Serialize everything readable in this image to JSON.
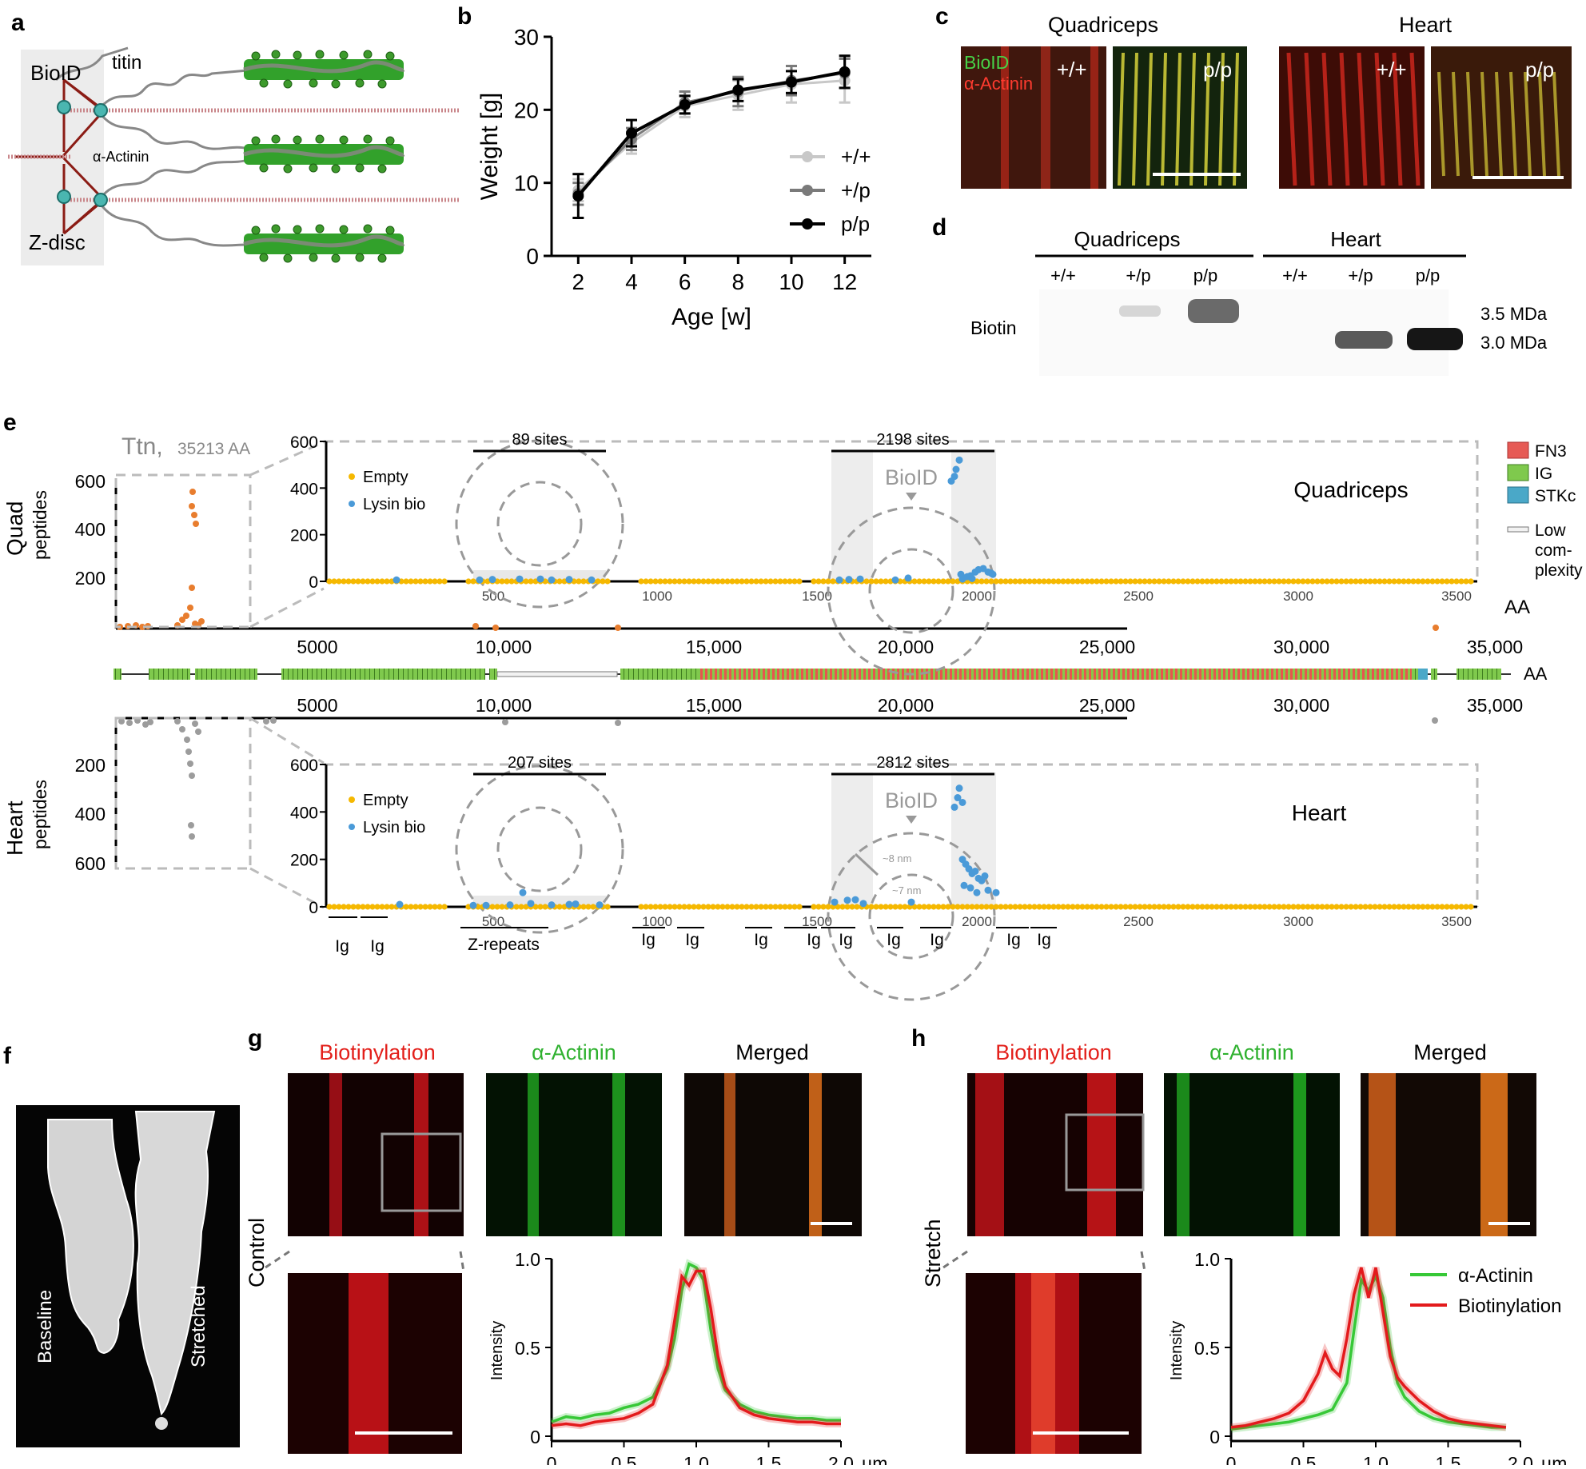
{
  "panel_letters": {
    "a": "a",
    "b": "b",
    "c": "c",
    "d": "d",
    "e": "e",
    "f": "f",
    "g": "g",
    "h": "h"
  },
  "panel_a": {
    "bioid": "BioID",
    "titin": "titin",
    "actinin": "α-Actinin",
    "zdisc": "Z-disc"
  },
  "panel_b": {
    "chart_data": {
      "type": "line",
      "xlabel": "Age [w]",
      "ylabel": "Weight [g]",
      "x": [
        2,
        4,
        6,
        8,
        10,
        12
      ],
      "xlim": [
        1,
        13
      ],
      "ylim": [
        0,
        30
      ],
      "yticks": [
        0,
        10,
        20,
        30
      ],
      "legend_position": "bottom-right",
      "series": [
        {
          "name": "+/+",
          "color": "#c8c8c8",
          "values": [
            9.0,
            15.5,
            20.5,
            22.0,
            23.5,
            24.0
          ],
          "err": [
            1.5,
            1.5,
            1.5,
            2.0,
            2.5,
            3.0
          ]
        },
        {
          "name": "+/p",
          "color": "#7a7a7a",
          "values": [
            8.5,
            16.0,
            21.0,
            22.5,
            24.0,
            25.0
          ],
          "err": [
            1.5,
            1.5,
            1.5,
            2.0,
            2.0,
            2.0
          ]
        },
        {
          "name": "p/p",
          "color": "#000000",
          "values": [
            8.2,
            16.8,
            20.7,
            22.7,
            23.8,
            25.2
          ],
          "err": [
            3.0,
            1.8,
            1.2,
            1.5,
            1.5,
            2.2
          ]
        }
      ]
    }
  },
  "panel_c": {
    "title_quad": "Quadriceps",
    "title_heart": "Heart",
    "bioid": "BioID",
    "actinin": "α-Actinin",
    "wt": "+/+",
    "pp": "p/p"
  },
  "panel_d": {
    "quad": "Quadriceps",
    "heart": "Heart",
    "lanes": [
      "+/+",
      "+/p",
      "p/p",
      "+/+",
      "+/p",
      "p/p"
    ],
    "row_label": "Biotin",
    "mw_top": "3.5 MDa",
    "mw_bottom": "3.0 MDa"
  },
  "panel_e": {
    "ttn": "Ttn,",
    "ttn_len": "35213 AA",
    "quad_label": "Quad",
    "heart_label": "Heart",
    "peptides": "peptides",
    "quad_title": "Quadriceps",
    "heart_title": "Heart",
    "legend_empty": "Empty",
    "legend_lysin": "Lysin bio",
    "bioid": "BioID",
    "quad_sites_left": "89 sites",
    "quad_sites_right": "2198 sites",
    "heart_sites_left": "207 sites",
    "heart_sites_right": "2812 sites",
    "aa": "AA",
    "full_ticks": [
      "5000",
      "10,000",
      "15,000",
      "20,000",
      "25,000",
      "30,000",
      "35,000"
    ],
    "zoom_ticks": [
      "500",
      "1000",
      "1500",
      "2000",
      "2500",
      "3000",
      "3500"
    ],
    "y_ticks": [
      "0",
      "200",
      "400",
      "600"
    ],
    "left_quad_ticks": [
      "600",
      "400",
      "200"
    ],
    "left_heart_ticks": [
      "200",
      "400",
      "600"
    ],
    "domain_legend": [
      {
        "label": "FN3",
        "color": "#e65a55"
      },
      {
        "label": "IG",
        "color": "#7fc94d"
      },
      {
        "label": "STKc",
        "color": "#4aa8c8"
      }
    ],
    "low": "Low",
    "com": "com-",
    "plexity": "plexity",
    "nm8": "~8 nm",
    "nm7": "~7 nm",
    "ig": "Ig",
    "zrep": "Z-repeats"
  },
  "panel_f": {
    "baseline": "Baseline",
    "stretched": "Stretched"
  },
  "panel_g": {
    "row_label": "Control",
    "col_bio": "Biotinylation",
    "col_act": "α-Actinin",
    "col_merged": "Merged",
    "chart_data": {
      "type": "line",
      "xlabel": "",
      "ylabel": "Intensity",
      "x_unit": "µm",
      "xlim": [
        0,
        2.0
      ],
      "ylim": [
        0,
        1.0
      ],
      "xticks": [
        "0",
        "0.5",
        "1.0",
        "1.5",
        "2.0"
      ],
      "yticks": [
        "0",
        "0.5",
        "1.0"
      ],
      "series": [
        {
          "name": "α-Actinin",
          "color": "#37c837",
          "x": [
            0,
            0.1,
            0.2,
            0.3,
            0.4,
            0.5,
            0.6,
            0.7,
            0.8,
            0.85,
            0.9,
            0.95,
            1.0,
            1.05,
            1.1,
            1.15,
            1.2,
            1.3,
            1.4,
            1.5,
            1.6,
            1.7,
            1.8,
            1.9,
            2.0
          ],
          "values": [
            0.08,
            0.11,
            0.1,
            0.12,
            0.13,
            0.16,
            0.18,
            0.22,
            0.38,
            0.55,
            0.82,
            0.97,
            0.95,
            0.88,
            0.6,
            0.38,
            0.26,
            0.18,
            0.14,
            0.12,
            0.11,
            0.1,
            0.1,
            0.09,
            0.09
          ]
        },
        {
          "name": "Biotinylation",
          "color": "#e31a1c",
          "x": [
            0,
            0.1,
            0.2,
            0.3,
            0.4,
            0.5,
            0.6,
            0.7,
            0.8,
            0.85,
            0.9,
            0.95,
            1.0,
            1.05,
            1.1,
            1.15,
            1.2,
            1.3,
            1.4,
            1.5,
            1.6,
            1.7,
            1.8,
            1.9,
            2.0
          ],
          "values": [
            0.06,
            0.07,
            0.06,
            0.08,
            0.09,
            0.1,
            0.13,
            0.18,
            0.4,
            0.65,
            0.9,
            0.85,
            0.93,
            0.93,
            0.72,
            0.45,
            0.28,
            0.16,
            0.12,
            0.1,
            0.09,
            0.08,
            0.08,
            0.07,
            0.07
          ]
        }
      ]
    }
  },
  "panel_h": {
    "row_label": "Stretch",
    "col_bio": "Biotinylation",
    "col_act": "α-Actinin",
    "col_merged": "Merged",
    "chart_data": {
      "type": "line",
      "xlabel": "",
      "ylabel": "Intensity",
      "x_unit": "µm",
      "xlim": [
        0,
        2.0
      ],
      "ylim": [
        0,
        1.0
      ],
      "xticks": [
        "0",
        "0.5",
        "1.0",
        "1.5",
        "2.0"
      ],
      "yticks": [
        "0",
        "0.5",
        "1.0"
      ],
      "legend_position": "top-right",
      "series": [
        {
          "name": "α-Actinin",
          "color": "#37c837",
          "x": [
            0,
            0.1,
            0.2,
            0.3,
            0.4,
            0.5,
            0.6,
            0.7,
            0.8,
            0.85,
            0.9,
            0.95,
            1.0,
            1.05,
            1.1,
            1.15,
            1.2,
            1.3,
            1.4,
            1.5,
            1.6,
            1.7,
            1.8,
            1.9
          ],
          "values": [
            0.04,
            0.05,
            0.06,
            0.07,
            0.08,
            0.1,
            0.12,
            0.15,
            0.3,
            0.6,
            0.88,
            0.82,
            0.9,
            0.78,
            0.5,
            0.3,
            0.22,
            0.14,
            0.1,
            0.08,
            0.07,
            0.06,
            0.05,
            0.05
          ]
        },
        {
          "name": "Biotinylation",
          "color": "#e31a1c",
          "x": [
            0,
            0.1,
            0.2,
            0.3,
            0.4,
            0.5,
            0.6,
            0.65,
            0.7,
            0.75,
            0.8,
            0.85,
            0.9,
            0.95,
            1.0,
            1.05,
            1.1,
            1.15,
            1.2,
            1.25,
            1.3,
            1.4,
            1.5,
            1.6,
            1.7,
            1.8,
            1.9
          ],
          "values": [
            0.05,
            0.06,
            0.08,
            0.1,
            0.13,
            0.2,
            0.35,
            0.47,
            0.38,
            0.34,
            0.55,
            0.8,
            0.95,
            0.78,
            0.95,
            0.7,
            0.45,
            0.33,
            0.28,
            0.24,
            0.2,
            0.14,
            0.1,
            0.08,
            0.07,
            0.06,
            0.05
          ]
        }
      ]
    }
  }
}
